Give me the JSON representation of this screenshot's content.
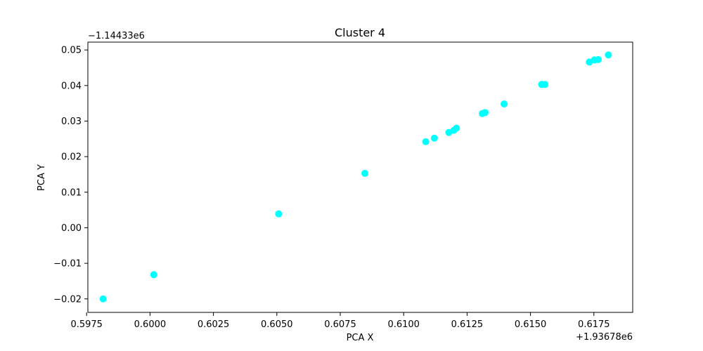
{
  "chart_data": {
    "type": "scatter",
    "title": "Cluster 4",
    "xlabel": "PCA X",
    "ylabel": "PCA Y",
    "x_offset_label": "+1.93678e6",
    "y_offset_label": "−1.14433e6",
    "xlim": [
      0.59755,
      0.61903
    ],
    "ylim": [
      -0.0238,
      0.0522
    ],
    "x_ticks": [
      {
        "value": 0.5975,
        "label": "0.5975"
      },
      {
        "value": 0.6,
        "label": "0.6000"
      },
      {
        "value": 0.6025,
        "label": "0.6025"
      },
      {
        "value": 0.605,
        "label": "0.6050"
      },
      {
        "value": 0.6075,
        "label": "0.6075"
      },
      {
        "value": 0.61,
        "label": "0.6100"
      },
      {
        "value": 0.6125,
        "label": "0.6125"
      },
      {
        "value": 0.615,
        "label": "0.6150"
      },
      {
        "value": 0.6175,
        "label": "0.6175"
      }
    ],
    "y_ticks": [
      {
        "value": -0.02,
        "label": "−0.02"
      },
      {
        "value": -0.01,
        "label": "−0.01"
      },
      {
        "value": 0.0,
        "label": "0.00"
      },
      {
        "value": 0.01,
        "label": "0.01"
      },
      {
        "value": 0.02,
        "label": "0.02"
      },
      {
        "value": 0.03,
        "label": "0.03"
      },
      {
        "value": 0.04,
        "label": "0.04"
      },
      {
        "value": 0.05,
        "label": "0.05"
      }
    ],
    "grid": false,
    "marker_color": "#00ffff",
    "points": [
      {
        "x": 0.59815,
        "y": -0.02
      },
      {
        "x": 0.60015,
        "y": -0.0132
      },
      {
        "x": 0.60507,
        "y": 0.0039
      },
      {
        "x": 0.60847,
        "y": 0.0153
      },
      {
        "x": 0.61087,
        "y": 0.0242
      },
      {
        "x": 0.61121,
        "y": 0.0252
      },
      {
        "x": 0.61178,
        "y": 0.0268
      },
      {
        "x": 0.61198,
        "y": 0.0274
      },
      {
        "x": 0.61208,
        "y": 0.028
      },
      {
        "x": 0.6131,
        "y": 0.0321
      },
      {
        "x": 0.61321,
        "y": 0.0324
      },
      {
        "x": 0.61396,
        "y": 0.0348
      },
      {
        "x": 0.61544,
        "y": 0.0403
      },
      {
        "x": 0.61557,
        "y": 0.0403
      },
      {
        "x": 0.61732,
        "y": 0.0466
      },
      {
        "x": 0.61752,
        "y": 0.0472
      },
      {
        "x": 0.61767,
        "y": 0.0473
      },
      {
        "x": 0.61807,
        "y": 0.0486
      }
    ]
  }
}
